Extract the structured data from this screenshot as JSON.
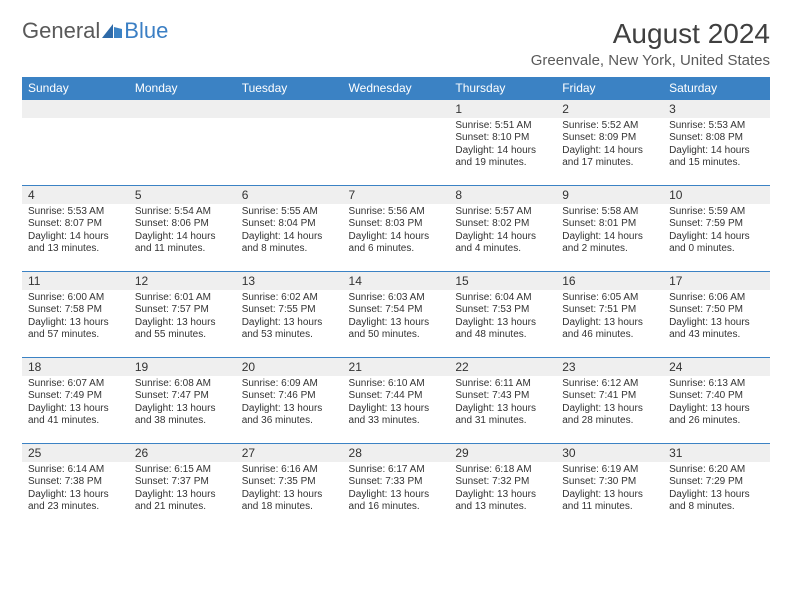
{
  "logo": {
    "gen": "General",
    "blue": "Blue"
  },
  "title": "August 2024",
  "location": "Greenvale, New York, United States",
  "colors": {
    "header_bg": "#3b82c4",
    "header_fg": "#ffffff",
    "daynum_bg": "#efefef",
    "rule": "#3b82c4",
    "logo_gray": "#595959",
    "logo_blue": "#3b7fc4"
  },
  "weekdays": [
    "Sunday",
    "Monday",
    "Tuesday",
    "Wednesday",
    "Thursday",
    "Friday",
    "Saturday"
  ],
  "weeks": [
    [
      null,
      null,
      null,
      null,
      {
        "n": "1",
        "sr": "Sunrise: 5:51 AM",
        "ss": "Sunset: 8:10 PM",
        "d1": "Daylight: 14 hours",
        "d2": "and 19 minutes."
      },
      {
        "n": "2",
        "sr": "Sunrise: 5:52 AM",
        "ss": "Sunset: 8:09 PM",
        "d1": "Daylight: 14 hours",
        "d2": "and 17 minutes."
      },
      {
        "n": "3",
        "sr": "Sunrise: 5:53 AM",
        "ss": "Sunset: 8:08 PM",
        "d1": "Daylight: 14 hours",
        "d2": "and 15 minutes."
      }
    ],
    [
      {
        "n": "4",
        "sr": "Sunrise: 5:53 AM",
        "ss": "Sunset: 8:07 PM",
        "d1": "Daylight: 14 hours",
        "d2": "and 13 minutes."
      },
      {
        "n": "5",
        "sr": "Sunrise: 5:54 AM",
        "ss": "Sunset: 8:06 PM",
        "d1": "Daylight: 14 hours",
        "d2": "and 11 minutes."
      },
      {
        "n": "6",
        "sr": "Sunrise: 5:55 AM",
        "ss": "Sunset: 8:04 PM",
        "d1": "Daylight: 14 hours",
        "d2": "and 8 minutes."
      },
      {
        "n": "7",
        "sr": "Sunrise: 5:56 AM",
        "ss": "Sunset: 8:03 PM",
        "d1": "Daylight: 14 hours",
        "d2": "and 6 minutes."
      },
      {
        "n": "8",
        "sr": "Sunrise: 5:57 AM",
        "ss": "Sunset: 8:02 PM",
        "d1": "Daylight: 14 hours",
        "d2": "and 4 minutes."
      },
      {
        "n": "9",
        "sr": "Sunrise: 5:58 AM",
        "ss": "Sunset: 8:01 PM",
        "d1": "Daylight: 14 hours",
        "d2": "and 2 minutes."
      },
      {
        "n": "10",
        "sr": "Sunrise: 5:59 AM",
        "ss": "Sunset: 7:59 PM",
        "d1": "Daylight: 14 hours",
        "d2": "and 0 minutes."
      }
    ],
    [
      {
        "n": "11",
        "sr": "Sunrise: 6:00 AM",
        "ss": "Sunset: 7:58 PM",
        "d1": "Daylight: 13 hours",
        "d2": "and 57 minutes."
      },
      {
        "n": "12",
        "sr": "Sunrise: 6:01 AM",
        "ss": "Sunset: 7:57 PM",
        "d1": "Daylight: 13 hours",
        "d2": "and 55 minutes."
      },
      {
        "n": "13",
        "sr": "Sunrise: 6:02 AM",
        "ss": "Sunset: 7:55 PM",
        "d1": "Daylight: 13 hours",
        "d2": "and 53 minutes."
      },
      {
        "n": "14",
        "sr": "Sunrise: 6:03 AM",
        "ss": "Sunset: 7:54 PM",
        "d1": "Daylight: 13 hours",
        "d2": "and 50 minutes."
      },
      {
        "n": "15",
        "sr": "Sunrise: 6:04 AM",
        "ss": "Sunset: 7:53 PM",
        "d1": "Daylight: 13 hours",
        "d2": "and 48 minutes."
      },
      {
        "n": "16",
        "sr": "Sunrise: 6:05 AM",
        "ss": "Sunset: 7:51 PM",
        "d1": "Daylight: 13 hours",
        "d2": "and 46 minutes."
      },
      {
        "n": "17",
        "sr": "Sunrise: 6:06 AM",
        "ss": "Sunset: 7:50 PM",
        "d1": "Daylight: 13 hours",
        "d2": "and 43 minutes."
      }
    ],
    [
      {
        "n": "18",
        "sr": "Sunrise: 6:07 AM",
        "ss": "Sunset: 7:49 PM",
        "d1": "Daylight: 13 hours",
        "d2": "and 41 minutes."
      },
      {
        "n": "19",
        "sr": "Sunrise: 6:08 AM",
        "ss": "Sunset: 7:47 PM",
        "d1": "Daylight: 13 hours",
        "d2": "and 38 minutes."
      },
      {
        "n": "20",
        "sr": "Sunrise: 6:09 AM",
        "ss": "Sunset: 7:46 PM",
        "d1": "Daylight: 13 hours",
        "d2": "and 36 minutes."
      },
      {
        "n": "21",
        "sr": "Sunrise: 6:10 AM",
        "ss": "Sunset: 7:44 PM",
        "d1": "Daylight: 13 hours",
        "d2": "and 33 minutes."
      },
      {
        "n": "22",
        "sr": "Sunrise: 6:11 AM",
        "ss": "Sunset: 7:43 PM",
        "d1": "Daylight: 13 hours",
        "d2": "and 31 minutes."
      },
      {
        "n": "23",
        "sr": "Sunrise: 6:12 AM",
        "ss": "Sunset: 7:41 PM",
        "d1": "Daylight: 13 hours",
        "d2": "and 28 minutes."
      },
      {
        "n": "24",
        "sr": "Sunrise: 6:13 AM",
        "ss": "Sunset: 7:40 PM",
        "d1": "Daylight: 13 hours",
        "d2": "and 26 minutes."
      }
    ],
    [
      {
        "n": "25",
        "sr": "Sunrise: 6:14 AM",
        "ss": "Sunset: 7:38 PM",
        "d1": "Daylight: 13 hours",
        "d2": "and 23 minutes."
      },
      {
        "n": "26",
        "sr": "Sunrise: 6:15 AM",
        "ss": "Sunset: 7:37 PM",
        "d1": "Daylight: 13 hours",
        "d2": "and 21 minutes."
      },
      {
        "n": "27",
        "sr": "Sunrise: 6:16 AM",
        "ss": "Sunset: 7:35 PM",
        "d1": "Daylight: 13 hours",
        "d2": "and 18 minutes."
      },
      {
        "n": "28",
        "sr": "Sunrise: 6:17 AM",
        "ss": "Sunset: 7:33 PM",
        "d1": "Daylight: 13 hours",
        "d2": "and 16 minutes."
      },
      {
        "n": "29",
        "sr": "Sunrise: 6:18 AM",
        "ss": "Sunset: 7:32 PM",
        "d1": "Daylight: 13 hours",
        "d2": "and 13 minutes."
      },
      {
        "n": "30",
        "sr": "Sunrise: 6:19 AM",
        "ss": "Sunset: 7:30 PM",
        "d1": "Daylight: 13 hours",
        "d2": "and 11 minutes."
      },
      {
        "n": "31",
        "sr": "Sunrise: 6:20 AM",
        "ss": "Sunset: 7:29 PM",
        "d1": "Daylight: 13 hours",
        "d2": "and 8 minutes."
      }
    ]
  ]
}
